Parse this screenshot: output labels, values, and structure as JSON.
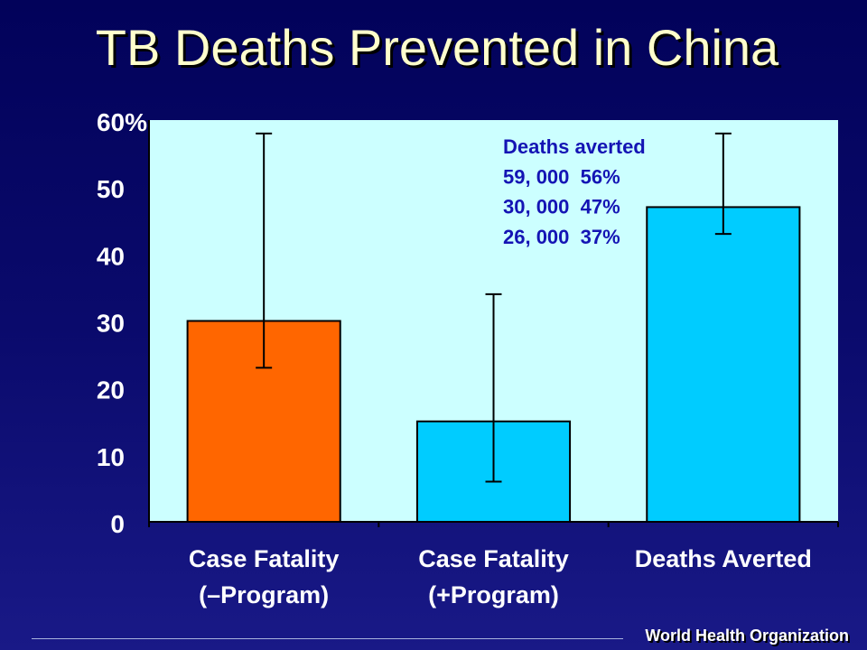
{
  "chart_data": {
    "type": "bar",
    "title": "TB Deaths Prevented in China",
    "xlabel": "",
    "ylabel": "",
    "categories": [
      "Case Fatality\n(–Program)",
      "Case Fatality\n(+Program)",
      "Deaths Averted"
    ],
    "values": [
      30,
      15,
      47
    ],
    "error_bars": [
      {
        "low": 23,
        "high": 58
      },
      {
        "low": 6,
        "high": 34
      },
      {
        "low": 43,
        "high": 58
      }
    ],
    "ylim": [
      0,
      60
    ],
    "yticks": [
      0,
      10,
      20,
      30,
      40,
      50,
      60
    ],
    "ytick_labels": [
      "0",
      "10",
      "20",
      "30",
      "40",
      "50",
      "60%"
    ],
    "grid": false,
    "legend": "none",
    "bar_colors": [
      "#ff6600",
      "#00ccff",
      "#00ccff"
    ],
    "plot_area_color": "#ccffff",
    "annotation": {
      "color": "#1414b4",
      "heading": "Deaths averted",
      "rows": [
        "59, 000  56%",
        "30, 000  47%",
        "26, 000  37%"
      ]
    }
  },
  "footer": {
    "organization": "World Health Organization"
  }
}
